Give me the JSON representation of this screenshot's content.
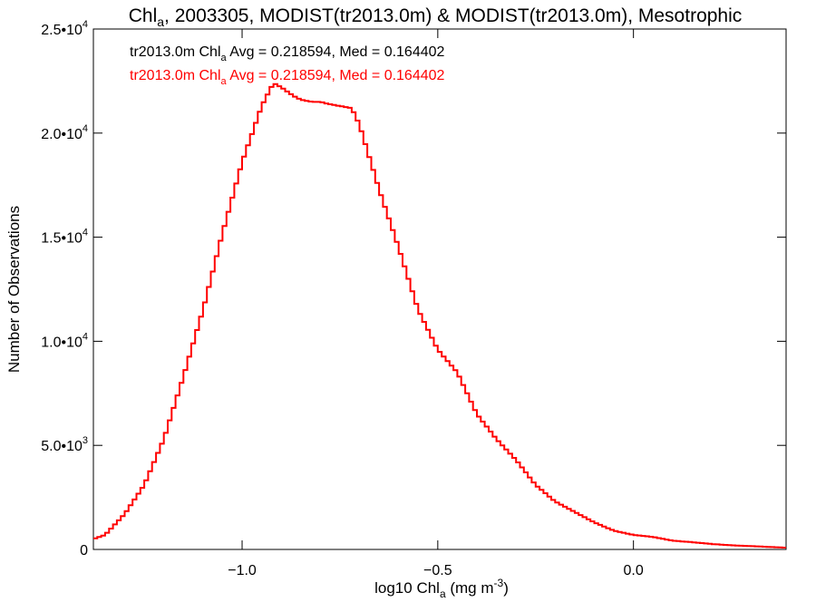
{
  "chart_data": {
    "type": "line",
    "title_main": "Chl",
    "title_sub": "a",
    "title_rest": ", 2003305, MODIST(tr2013.0m) & MODIST(tr2013.0m), Mesotrophic",
    "ylabel": "Number of Observations",
    "xlabel_main": "log10 Chl",
    "xlabel_sub": "a",
    "xlabel_rest": " (mg m",
    "xlabel_sup": "-3",
    "xlabel_end": ")",
    "xlim": [
      -1.38,
      0.39
    ],
    "ylim": [
      0,
      25000
    ],
    "x_ticks": [
      {
        "value": -1.0,
        "label": "−1.0"
      },
      {
        "value": -0.5,
        "label": "−0.5"
      },
      {
        "value": 0.0,
        "label": "0.0"
      }
    ],
    "y_ticks": [
      {
        "value": 0,
        "mant": "0",
        "exp": ""
      },
      {
        "value": 5000,
        "mant": "5.0•10",
        "exp": "3"
      },
      {
        "value": 10000,
        "mant": "1.0•10",
        "exp": "4"
      },
      {
        "value": 15000,
        "mant": "1.5•10",
        "exp": "4"
      },
      {
        "value": 20000,
        "mant": "2.0•10",
        "exp": "4"
      },
      {
        "value": 25000,
        "mant": "2.5•10",
        "exp": "4"
      }
    ],
    "annotations": [
      {
        "pre": "tr2013.0m Chl",
        "sub": "a",
        "post": " Avg = 0.218594, Med = 0.164402",
        "color": "#000000"
      },
      {
        "pre": "tr2013.0m Chl",
        "sub": "a",
        "post": " Avg = 0.218594, Med = 0.164402",
        "color": "#ff0000"
      }
    ],
    "series": [
      {
        "color": "#ff0000",
        "x": [
          -1.38,
          -1.35,
          -1.3,
          -1.25,
          -1.2,
          -1.15,
          -1.1,
          -1.05,
          -1.0,
          -0.95,
          -0.92,
          -0.9,
          -0.87,
          -0.85,
          -0.82,
          -0.8,
          -0.78,
          -0.75,
          -0.72,
          -0.7,
          -0.65,
          -0.6,
          -0.55,
          -0.5,
          -0.45,
          -0.4,
          -0.35,
          -0.3,
          -0.25,
          -0.2,
          -0.15,
          -0.1,
          -0.05,
          0.0,
          0.05,
          0.1,
          0.15,
          0.2,
          0.25,
          0.3,
          0.35,
          0.39
        ],
        "y": [
          500,
          700,
          1700,
          3100,
          5300,
          8300,
          11500,
          15200,
          18600,
          21300,
          22400,
          22200,
          21800,
          21600,
          21500,
          21500,
          21400,
          21300,
          21200,
          20400,
          17300,
          14500,
          11500,
          9600,
          8500,
          6500,
          5300,
          4300,
          3100,
          2300,
          1800,
          1300,
          900,
          700,
          600,
          420,
          350,
          260,
          200,
          160,
          120,
          80
        ]
      }
    ]
  }
}
